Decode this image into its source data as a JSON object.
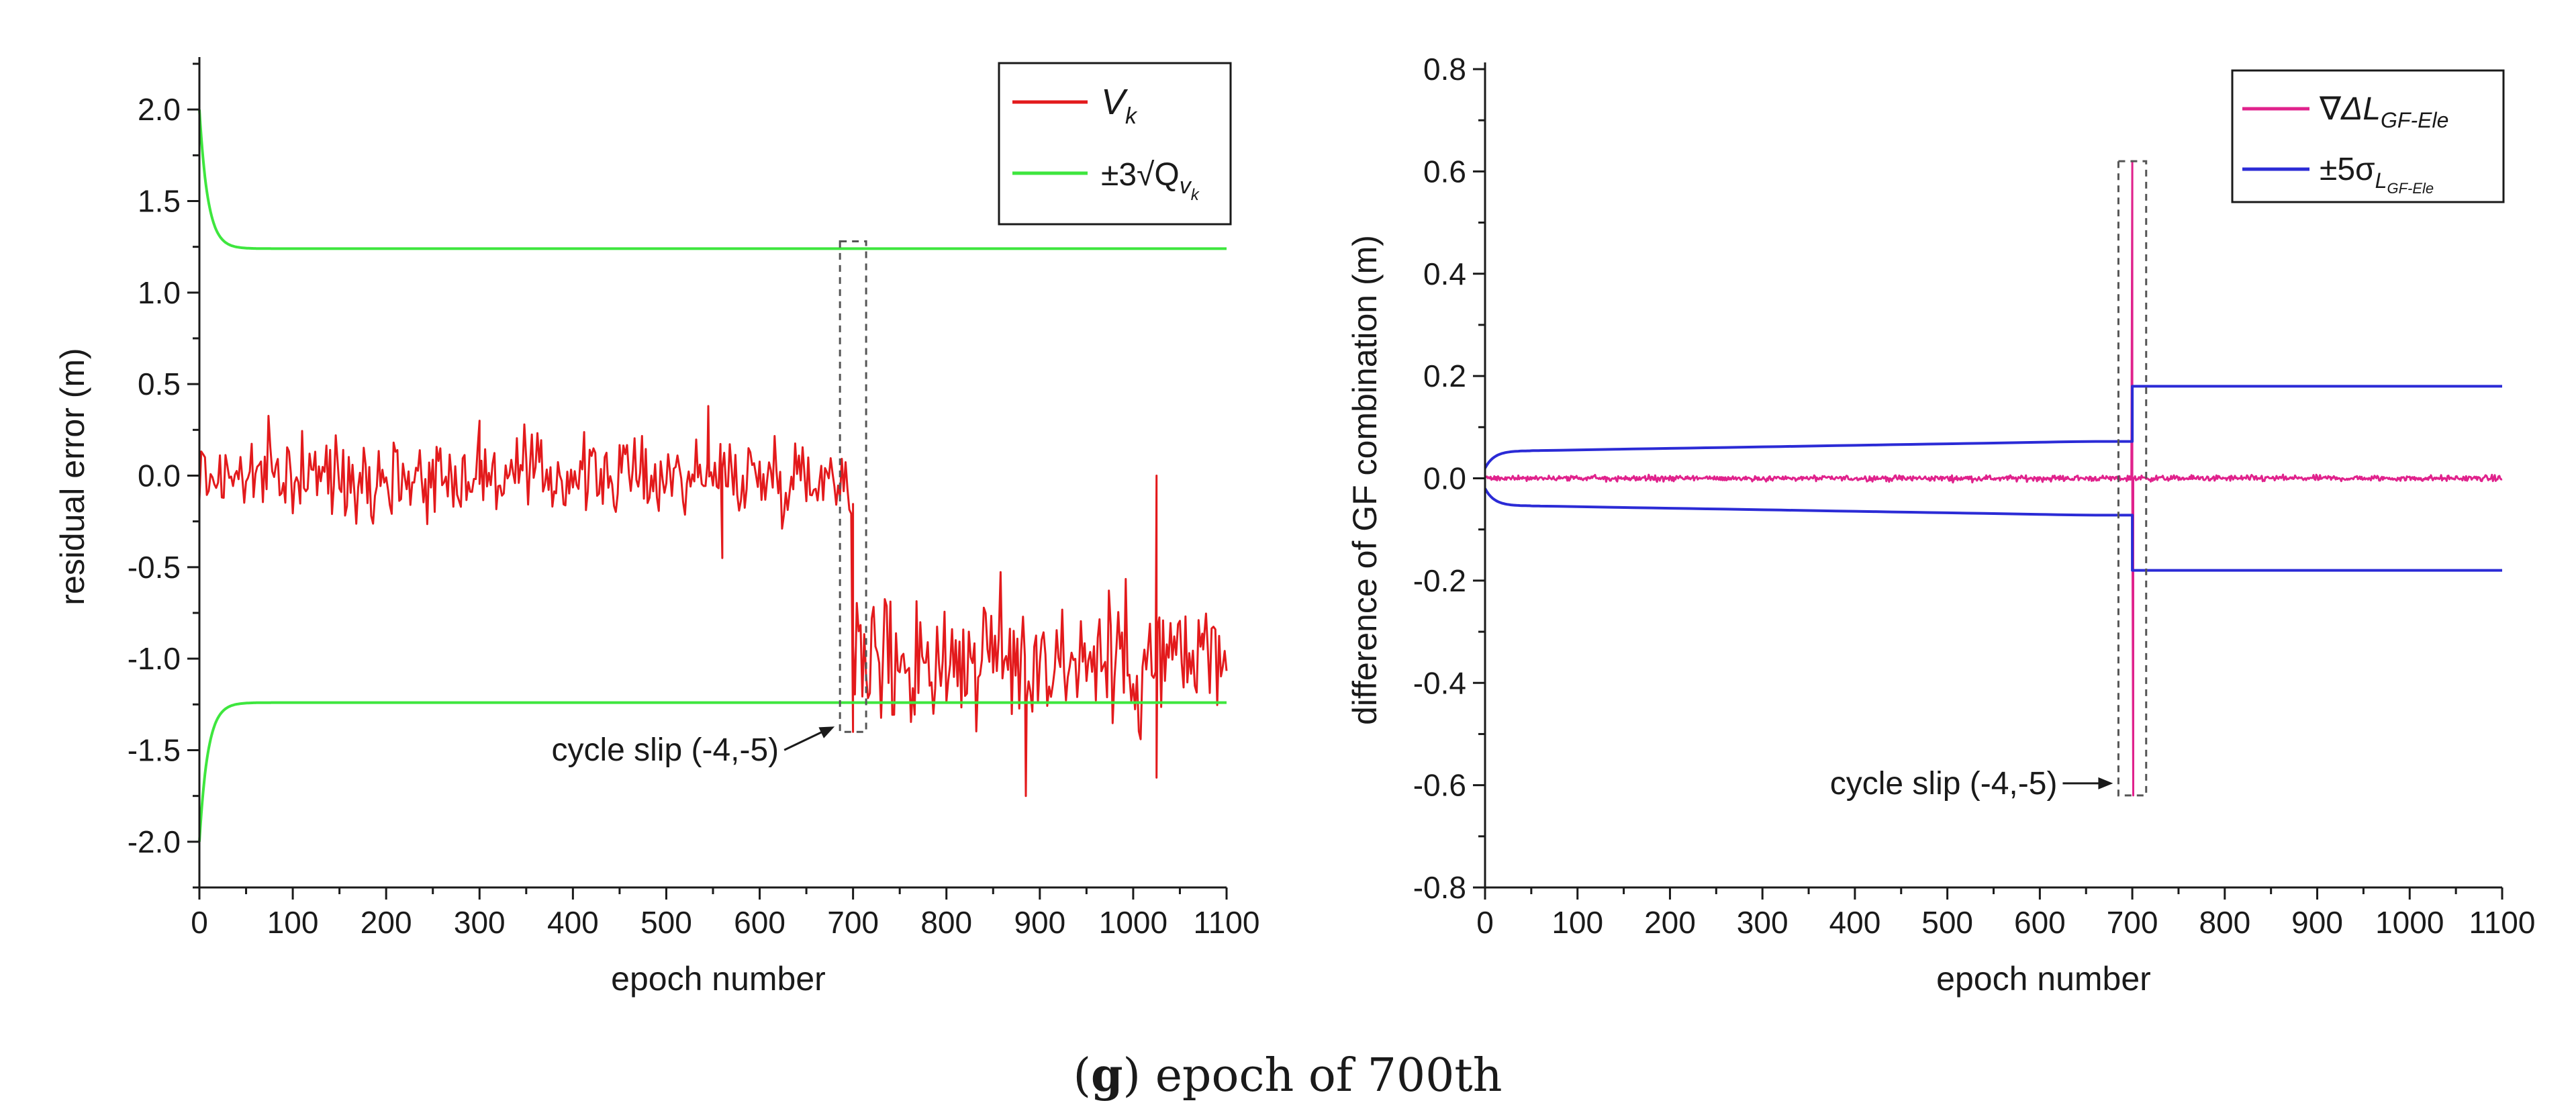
{
  "caption": {
    "letter": "g",
    "text": "epoch of 700th"
  },
  "colors": {
    "vk": "#e31a1c",
    "bound_left": "#3ee63e",
    "gf": "#e0228c",
    "bound_right": "#2b2bd6",
    "axis": "#1a1a1a",
    "box": "#555555"
  },
  "chart_data": [
    {
      "type": "line",
      "xlabel": "epoch number",
      "ylabel": "residual error (m)",
      "xlim": [
        0,
        1100
      ],
      "ylim": [
        -2.25,
        2.25
      ],
      "x_ticks": [
        "0",
        "100",
        "200",
        "300",
        "400",
        "500",
        "600",
        "700",
        "800",
        "900",
        "1000",
        "1100"
      ],
      "y_ticks": [
        "2.0",
        "1.5",
        "1.0",
        "0.5",
        "0.0",
        "-0.5",
        "-1.0",
        "-1.5",
        "-2.0"
      ],
      "legend": {
        "position": "top-right",
        "entries": [
          {
            "name": "V",
            "sub": "k",
            "color": "#e31a1c"
          },
          {
            "name": "±3√Q",
            "sub": "v",
            "subsub": "k",
            "color": "#3ee63e"
          }
        ]
      },
      "series": [
        {
          "name": "V_k",
          "kind": "noise",
          "color": "#e31a1c",
          "segments": [
            {
              "x_start": 0,
              "x_end": 700,
              "mean": 0.0,
              "spread": 0.15
            },
            {
              "x_start": 700,
              "x_end": 1100,
              "mean": -1.0,
              "spread": 0.28
            }
          ],
          "spikes": [
            [
              0,
              0.22
            ],
            [
              300,
              0.3
            ],
            [
              545,
              0.38
            ],
            [
              560,
              -0.45
            ],
            [
              700,
              -1.4
            ],
            [
              885,
              -1.75
            ],
            [
              1025,
              -1.65
            ],
            [
              1025,
              0.0
            ],
            [
              1075,
              -0.95
            ]
          ]
        },
        {
          "name": "+3√Q_vk",
          "kind": "decay",
          "color": "#3ee63e",
          "start": 2.0,
          "settle": 1.24
        },
        {
          "name": "-3√Q_vk",
          "kind": "decay",
          "color": "#3ee63e",
          "start": -2.0,
          "settle": -1.24
        }
      ],
      "annotation": {
        "text": "cycle slip (-4,-5)",
        "x": 700,
        "box_x": [
          686,
          714
        ],
        "box_y": [
          -1.4,
          1.28
        ]
      }
    },
    {
      "type": "line",
      "xlabel": "epoch number",
      "ylabel": "difference of GF combination (m)",
      "xlim": [
        0,
        1100
      ],
      "ylim": [
        -0.8,
        0.8
      ],
      "x_ticks": [
        "0",
        "100",
        "200",
        "300",
        "400",
        "500",
        "600",
        "700",
        "800",
        "900",
        "1000",
        "1100"
      ],
      "y_ticks": [
        "0.8",
        "0.6",
        "0.4",
        "0.2",
        "0.0",
        "-0.2",
        "-0.4",
        "-0.6",
        "-0.8"
      ],
      "legend": {
        "position": "top-right",
        "entries": [
          {
            "name": "∇ΔL",
            "sub": "GF-Ele",
            "color": "#e0228c"
          },
          {
            "name": "±5σ",
            "sub": "L",
            "subsub": "GF-Ele",
            "color": "#2b2bd6"
          }
        ]
      },
      "series": [
        {
          "name": "∇ΔL_GF-Ele",
          "kind": "noise",
          "color": "#e0228c",
          "segments": [
            {
              "x_start": 0,
              "x_end": 1100,
              "mean": 0.0,
              "spread": 0.004
            }
          ],
          "spikes": [
            [
              700,
              0.62
            ],
            [
              701,
              -0.62
            ]
          ]
        },
        {
          "name": "+5σ",
          "kind": "bound",
          "color": "#2b2bd6",
          "start": 0.02,
          "before": 0.072,
          "after": 0.18,
          "jump_at": 700
        },
        {
          "name": "-5σ",
          "kind": "bound",
          "color": "#2b2bd6",
          "start": -0.02,
          "before": -0.072,
          "after": -0.18,
          "jump_at": 700
        }
      ],
      "annotation": {
        "text": "cycle slip (-4,-5)",
        "x": 700,
        "box_x": [
          685,
          715
        ],
        "box_y": [
          -0.62,
          0.62
        ]
      }
    }
  ]
}
